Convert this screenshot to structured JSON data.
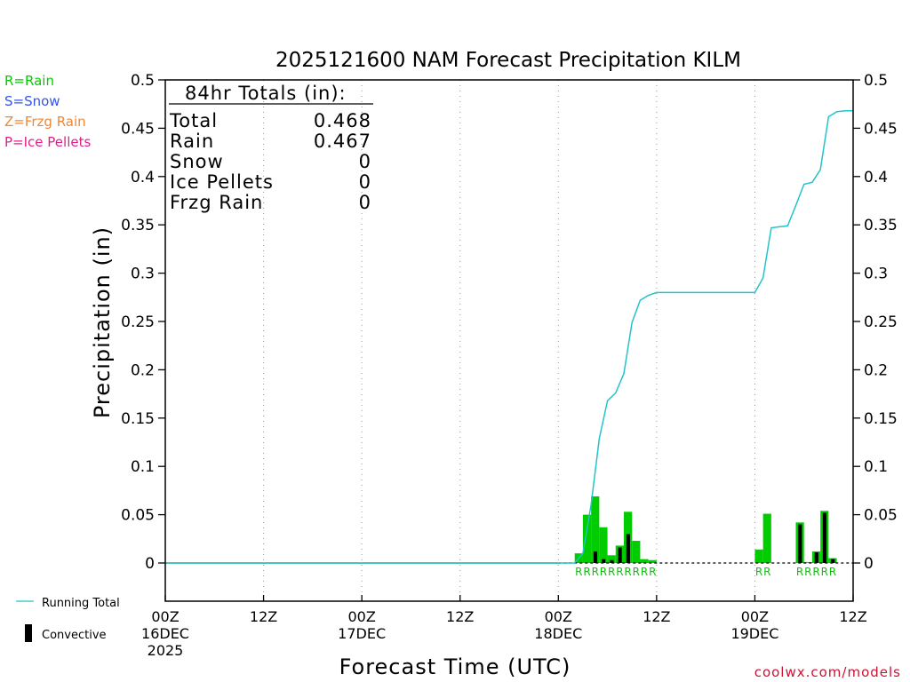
{
  "chart_data": {
    "type": "bar",
    "title": "2025121600 NAM Forecast Precipitation KILM",
    "xlabel": "Forecast Time (UTC)",
    "ylabel": "Precipitation (in)",
    "credit": "coolwx.com/models",
    "ylim": [
      0,
      0.5
    ],
    "xlim_hours": [
      0,
      84
    ],
    "yticks": [
      "0",
      "0.05",
      "0.1",
      "0.15",
      "0.2",
      "0.25",
      "0.3",
      "0.35",
      "0.4",
      "0.45",
      "0.5"
    ],
    "xticks": [
      {
        "hour": 0,
        "lines": [
          "00Z",
          "16DEC",
          "2025"
        ]
      },
      {
        "hour": 12,
        "lines": [
          "12Z"
        ]
      },
      {
        "hour": 24,
        "lines": [
          "00Z",
          "17DEC"
        ]
      },
      {
        "hour": 36,
        "lines": [
          "12Z"
        ]
      },
      {
        "hour": 48,
        "lines": [
          "00Z",
          "18DEC"
        ]
      },
      {
        "hour": 60,
        "lines": [
          "12Z"
        ]
      },
      {
        "hour": 72,
        "lines": [
          "00Z",
          "19DEC"
        ]
      },
      {
        "hour": 84,
        "lines": [
          "12Z"
        ]
      }
    ],
    "ptype_legend": [
      {
        "label": "R=Rain",
        "color": "#00cc00"
      },
      {
        "label": "S=Snow",
        "color": "#3355ee"
      },
      {
        "label": "Z=Frzg Rain",
        "color": "#ee8833"
      },
      {
        "label": "P=Ice Pellets",
        "color": "#e0208a"
      }
    ],
    "series_legend": [
      {
        "label": "Running Total",
        "color": "#22c4c8"
      },
      {
        "label": "Convective",
        "color": "#000000"
      }
    ],
    "totals": {
      "heading": "84hr Totals (in):",
      "rows": [
        {
          "label": "Total",
          "value": "0.468"
        },
        {
          "label": "Rain",
          "value": "0.467"
        },
        {
          "label": "Snow",
          "value": "0"
        },
        {
          "label": "Ice Pellets",
          "value": "0"
        },
        {
          "label": "Frzg Rain",
          "value": "0"
        }
      ]
    },
    "bar_color": "#00cc00",
    "conv_color": "#000000",
    "total_color": "#22c4c8",
    "bars": [
      {
        "hour": 51,
        "value": 0.01,
        "conv": 0
      },
      {
        "hour": 52,
        "value": 0.05,
        "conv": 0
      },
      {
        "hour": 53,
        "value": 0.069,
        "conv": 0.012
      },
      {
        "hour": 54,
        "value": 0.037,
        "conv": 0.004
      },
      {
        "hour": 55,
        "value": 0.008,
        "conv": 0.003
      },
      {
        "hour": 56,
        "value": 0.018,
        "conv": 0.016
      },
      {
        "hour": 57,
        "value": 0.053,
        "conv": 0.03
      },
      {
        "hour": 58,
        "value": 0.023,
        "conv": 0
      },
      {
        "hour": 59,
        "value": 0.004,
        "conv": 0
      },
      {
        "hour": 60,
        "value": 0.003,
        "conv": 0
      },
      {
        "hour": 73,
        "value": 0.014,
        "conv": 0
      },
      {
        "hour": 74,
        "value": 0.051,
        "conv": 0
      },
      {
        "hour": 78,
        "value": 0.042,
        "conv": 0.04
      },
      {
        "hour": 79,
        "value": 0.001,
        "conv": 0
      },
      {
        "hour": 80,
        "value": 0.012,
        "conv": 0.011
      },
      {
        "hour": 81,
        "value": 0.054,
        "conv": 0.052
      },
      {
        "hour": 82,
        "value": 0.005,
        "conv": 0.004
      }
    ],
    "ptype_markers": [
      {
        "hour": 51,
        "letter": "R"
      },
      {
        "hour": 52,
        "letter": "R"
      },
      {
        "hour": 53,
        "letter": "R"
      },
      {
        "hour": 54,
        "letter": "R"
      },
      {
        "hour": 55,
        "letter": "R"
      },
      {
        "hour": 56,
        "letter": "R"
      },
      {
        "hour": 57,
        "letter": "R"
      },
      {
        "hour": 58,
        "letter": "R"
      },
      {
        "hour": 59,
        "letter": "R"
      },
      {
        "hour": 60,
        "letter": "R"
      },
      {
        "hour": 73,
        "letter": "R"
      },
      {
        "hour": 74,
        "letter": "R"
      },
      {
        "hour": 78,
        "letter": "R"
      },
      {
        "hour": 79,
        "letter": "R"
      },
      {
        "hour": 80,
        "letter": "R"
      },
      {
        "hour": 81,
        "letter": "R"
      },
      {
        "hour": 82,
        "letter": "R"
      }
    ],
    "running_total": {
      "hours": [
        0,
        50,
        51,
        52,
        53,
        54,
        55,
        56,
        57,
        58,
        59,
        60,
        72,
        73,
        74,
        75,
        76,
        77,
        78,
        79,
        80,
        81,
        82,
        83,
        84
      ],
      "values": [
        0,
        0,
        0.01,
        0.06,
        0.129,
        0.168,
        0.176,
        0.196,
        0.249,
        0.272,
        0.277,
        0.28,
        0.28,
        0.295,
        0.347,
        0.348,
        0.349,
        0.37,
        0.392,
        0.394,
        0.407,
        0.462,
        0.467,
        0.468,
        0.468
      ]
    }
  }
}
